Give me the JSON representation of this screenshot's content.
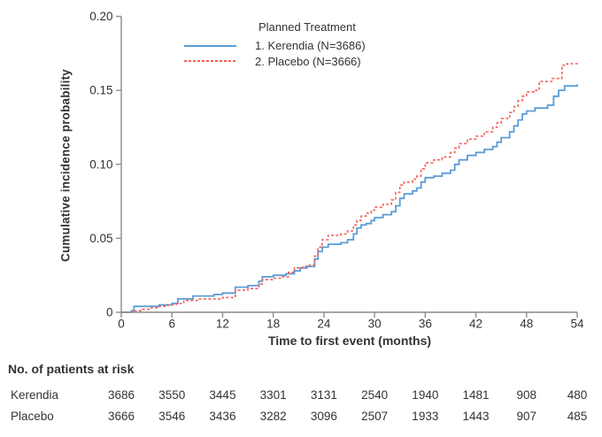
{
  "figure": {
    "ylabel": "Cumulative incidence probability",
    "xlabel": "Time to first event (months)",
    "legend": {
      "title": "Planned Treatment",
      "items": [
        {
          "label": "1.  Kerendia (N=3686)",
          "color": "#5b9cd6",
          "line_style": "solid"
        },
        {
          "label": "2.  Placebo (N=3666)",
          "color": "#f0625a",
          "line_style": "dashed"
        }
      ]
    }
  },
  "chart_data": {
    "type": "line",
    "line_mode": "step-after",
    "title": "",
    "xlabel": "Time to first event (months)",
    "ylabel": "Cumulative incidence probability",
    "xlim": [
      0,
      54
    ],
    "ylim": [
      0,
      0.2
    ],
    "xticks": [
      0,
      6,
      12,
      18,
      24,
      30,
      36,
      42,
      48,
      54
    ],
    "yticks": [
      0,
      0.05,
      0.1,
      0.15,
      0.2
    ],
    "ytick_labels": [
      "0",
      "0.05",
      "0.10",
      "0.15",
      "0.20"
    ],
    "grid": false,
    "legend_position": "inside-top",
    "series": [
      {
        "name": "Kerendia (N=3686)",
        "color": "#5b9cd6",
        "dash": "solid",
        "points": [
          [
            0,
            0
          ],
          [
            1.2,
            0.001
          ],
          [
            1.5,
            0.004
          ],
          [
            4.5,
            0.005
          ],
          [
            6,
            0.006
          ],
          [
            6.7,
            0.009
          ],
          [
            8.5,
            0.011
          ],
          [
            11,
            0.012
          ],
          [
            12,
            0.013
          ],
          [
            13.5,
            0.017
          ],
          [
            15,
            0.018
          ],
          [
            16.3,
            0.021
          ],
          [
            16.7,
            0.024
          ],
          [
            18,
            0.025
          ],
          [
            19.5,
            0.026
          ],
          [
            20.5,
            0.028
          ],
          [
            21.2,
            0.03
          ],
          [
            22,
            0.031
          ],
          [
            22.9,
            0.036
          ],
          [
            23.3,
            0.041
          ],
          [
            23.8,
            0.044
          ],
          [
            24.5,
            0.046
          ],
          [
            26,
            0.047
          ],
          [
            26.8,
            0.049
          ],
          [
            27.5,
            0.053
          ],
          [
            27.9,
            0.057
          ],
          [
            28.4,
            0.059
          ],
          [
            29,
            0.06
          ],
          [
            29.6,
            0.062
          ],
          [
            30,
            0.064
          ],
          [
            31,
            0.066
          ],
          [
            32,
            0.068
          ],
          [
            32.5,
            0.072
          ],
          [
            33,
            0.077
          ],
          [
            33.5,
            0.08
          ],
          [
            34.5,
            0.082
          ],
          [
            35,
            0.084
          ],
          [
            35.5,
            0.088
          ],
          [
            36,
            0.091
          ],
          [
            37,
            0.092
          ],
          [
            38,
            0.094
          ],
          [
            39,
            0.096
          ],
          [
            39.5,
            0.1
          ],
          [
            40,
            0.103
          ],
          [
            41,
            0.106
          ],
          [
            42,
            0.108
          ],
          [
            43,
            0.11
          ],
          [
            44,
            0.112
          ],
          [
            44.5,
            0.115
          ],
          [
            45,
            0.118
          ],
          [
            46,
            0.122
          ],
          [
            46.5,
            0.126
          ],
          [
            47,
            0.13
          ],
          [
            47.5,
            0.134
          ],
          [
            48,
            0.136
          ],
          [
            49,
            0.138
          ],
          [
            50.5,
            0.14
          ],
          [
            51.2,
            0.146
          ],
          [
            51.8,
            0.15
          ],
          [
            52.5,
            0.153
          ],
          [
            54,
            0.154
          ]
        ]
      },
      {
        "name": "Placebo (N=3666)",
        "color": "#f0625a",
        "dash": "dashed",
        "points": [
          [
            0,
            0
          ],
          [
            1.5,
            0.001
          ],
          [
            2.5,
            0.002
          ],
          [
            3.5,
            0.003
          ],
          [
            4.5,
            0.004
          ],
          [
            5.5,
            0.005
          ],
          [
            6.5,
            0.006
          ],
          [
            7.4,
            0.008
          ],
          [
            9,
            0.009
          ],
          [
            12,
            0.01
          ],
          [
            13.5,
            0.015
          ],
          [
            15,
            0.016
          ],
          [
            16.3,
            0.019
          ],
          [
            16.7,
            0.022
          ],
          [
            18,
            0.023
          ],
          [
            19,
            0.024
          ],
          [
            19.8,
            0.027
          ],
          [
            20.5,
            0.03
          ],
          [
            21.5,
            0.031
          ],
          [
            22.3,
            0.032
          ],
          [
            22.9,
            0.038
          ],
          [
            23.3,
            0.044
          ],
          [
            23.8,
            0.049
          ],
          [
            24.5,
            0.052
          ],
          [
            26,
            0.053
          ],
          [
            26.8,
            0.055
          ],
          [
            27.5,
            0.059
          ],
          [
            27.9,
            0.062
          ],
          [
            28.4,
            0.065
          ],
          [
            29,
            0.067
          ],
          [
            29.6,
            0.069
          ],
          [
            30,
            0.071
          ],
          [
            31,
            0.073
          ],
          [
            32,
            0.076
          ],
          [
            32.5,
            0.081
          ],
          [
            33,
            0.086
          ],
          [
            33.5,
            0.088
          ],
          [
            34.5,
            0.09
          ],
          [
            35,
            0.092
          ],
          [
            35.5,
            0.097
          ],
          [
            36,
            0.101
          ],
          [
            37,
            0.103
          ],
          [
            38,
            0.105
          ],
          [
            39,
            0.108
          ],
          [
            39.5,
            0.111
          ],
          [
            40,
            0.114
          ],
          [
            41,
            0.117
          ],
          [
            42,
            0.119
          ],
          [
            43,
            0.122
          ],
          [
            44,
            0.125
          ],
          [
            44.5,
            0.128
          ],
          [
            45,
            0.131
          ],
          [
            46,
            0.135
          ],
          [
            46.5,
            0.139
          ],
          [
            47,
            0.143
          ],
          [
            47.5,
            0.146
          ],
          [
            48,
            0.149
          ],
          [
            48.9,
            0.15
          ],
          [
            49.5,
            0.156
          ],
          [
            51,
            0.158
          ],
          [
            52.2,
            0.167
          ],
          [
            52.8,
            0.168
          ],
          [
            54,
            0.169
          ]
        ]
      }
    ]
  },
  "risk_table": {
    "header": "No. of patients at risk",
    "timepoints": [
      0,
      6,
      12,
      18,
      24,
      30,
      36,
      42,
      48,
      54
    ],
    "rows": [
      {
        "label": "Kerendia",
        "counts": [
          "3686",
          "3550",
          "3445",
          "3301",
          "3131",
          "2540",
          "1940",
          "1481",
          "908",
          "480"
        ]
      },
      {
        "label": "Placebo",
        "counts": [
          "3666",
          "3546",
          "3436",
          "3282",
          "3096",
          "2507",
          "1933",
          "1443",
          "907",
          "485"
        ]
      }
    ]
  },
  "style": {
    "axis_color": "#8c8c8c",
    "text_color": "#333333",
    "kerendia_color": "#5b9cd6",
    "placebo_color": "#f0625a"
  }
}
